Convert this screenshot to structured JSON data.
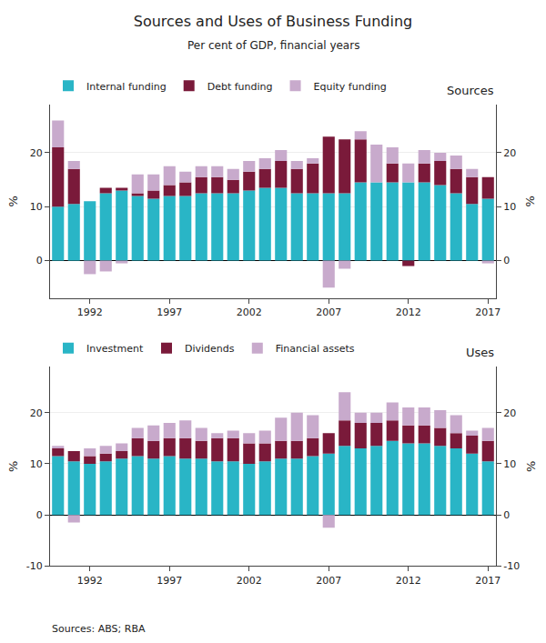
{
  "chart_data": [
    {
      "type": "bar",
      "title": "Sources and Uses of Business Funding",
      "subtitle": "Per cent of GDP, financial years",
      "annotations": [
        "Sources"
      ],
      "ylabel": "%",
      "y2label": "%",
      "categories": [
        null,
        null,
        "1992",
        null,
        null,
        null,
        null,
        "1997",
        null,
        null,
        null,
        null,
        "2002",
        null,
        null,
        null,
        null,
        "2007",
        null,
        null,
        null,
        null,
        "2012",
        null,
        null,
        null,
        null,
        "2017"
      ],
      "series": [
        {
          "name": "Internal funding",
          "color": "#29B5C6",
          "values": [
            10.0,
            10.5,
            11.0,
            12.5,
            13.0,
            12.0,
            11.5,
            12.0,
            12.0,
            12.5,
            12.5,
            12.5,
            13.0,
            13.5,
            13.5,
            12.5,
            12.5,
            12.5,
            12.5,
            14.5,
            14.5,
            14.5,
            14.5,
            14.5,
            14.0,
            12.5,
            10.5,
            11.5
          ]
        },
        {
          "name": "Debt funding",
          "color": "#7A1A3A",
          "values": [
            11.0,
            6.5,
            0.0,
            1.0,
            0.5,
            0.5,
            1.5,
            2.0,
            2.5,
            3.0,
            3.0,
            2.5,
            3.5,
            3.5,
            5.0,
            4.5,
            5.5,
            10.5,
            10.0,
            8.0,
            0.0,
            3.5,
            0.0,
            3.5,
            4.5,
            4.5,
            5.0,
            4.0
          ]
        },
        {
          "name": "Equity funding",
          "color": "#C8AACC",
          "values": [
            5.0,
            1.5,
            0.0,
            0.0,
            0.0,
            3.5,
            3.0,
            3.5,
            2.0,
            2.0,
            2.0,
            2.0,
            2.0,
            2.0,
            2.0,
            1.5,
            1.0,
            0.0,
            0.0,
            1.5,
            7.0,
            3.0,
            3.5,
            2.5,
            1.5,
            2.5,
            1.5,
            0.0
          ]
        },
        {
          "name": "Debt funding",
          "color": "#7A1A3A",
          "values": [
            0.0,
            0.0,
            0.0,
            0.0,
            0.0,
            0.0,
            0.0,
            0.0,
            0.0,
            0.0,
            0.0,
            0.0,
            0.0,
            0.0,
            0.0,
            0.0,
            0.0,
            0.0,
            0.0,
            0.0,
            0.0,
            0.0,
            -1.0,
            0.0,
            0.0,
            0.0,
            0.0,
            0.0
          ]
        },
        {
          "name": "Equity funding",
          "color": "#C8AACC",
          "values": [
            0.0,
            0.0,
            -2.5,
            -2.0,
            -0.5,
            0.0,
            0.0,
            0.0,
            0.0,
            0.0,
            0.0,
            0.0,
            0.0,
            0.0,
            0.0,
            0.0,
            0.0,
            -5.0,
            -1.5,
            0.0,
            0.0,
            0.0,
            0.0,
            0.0,
            0.0,
            0.0,
            0.0,
            -0.5
          ]
        }
      ],
      "stacked": true,
      "ylim": [
        -7,
        29
      ],
      "yticks": [
        0,
        10,
        20
      ],
      "y2lim": [
        -7,
        29
      ],
      "y2ticks": [
        0,
        10,
        20
      ],
      "grid": true,
      "legend": "upper left"
    },
    {
      "type": "bar",
      "annotations": [
        "Uses",
        "Sources: ABS; RBA"
      ],
      "ylabel": "%",
      "y2label": "%",
      "categories": [
        null,
        null,
        "1992",
        null,
        null,
        null,
        null,
        "1997",
        null,
        null,
        null,
        null,
        "2002",
        null,
        null,
        null,
        null,
        "2007",
        null,
        null,
        null,
        null,
        "2012",
        null,
        null,
        null,
        null,
        "2017"
      ],
      "series": [
        {
          "name": "Investment",
          "color": "#29B5C6",
          "values": [
            11.5,
            10.5,
            10.0,
            10.5,
            11.0,
            11.5,
            11.0,
            11.5,
            11.0,
            11.0,
            10.5,
            10.5,
            10.0,
            10.5,
            11.0,
            11.0,
            11.5,
            12.0,
            13.5,
            13.0,
            13.5,
            14.5,
            14.0,
            14.0,
            13.5,
            13.0,
            12.0,
            10.5
          ]
        },
        {
          "name": "Dividends",
          "color": "#7A1A3A",
          "values": [
            1.5,
            2.0,
            1.5,
            1.5,
            1.5,
            3.5,
            3.5,
            3.5,
            4.0,
            3.5,
            4.5,
            4.5,
            4.0,
            3.5,
            3.5,
            3.5,
            3.5,
            4.0,
            5.0,
            5.0,
            4.5,
            4.0,
            3.5,
            3.5,
            3.5,
            3.0,
            3.5,
            4.0
          ]
        },
        {
          "name": "Financial assets",
          "color": "#C8AACC",
          "values": [
            0.5,
            0.0,
            1.5,
            1.5,
            1.5,
            2.0,
            3.0,
            3.0,
            3.5,
            2.5,
            1.0,
            1.5,
            2.0,
            2.5,
            4.5,
            5.5,
            4.5,
            0.0,
            5.5,
            2.0,
            2.0,
            3.5,
            3.5,
            3.5,
            3.5,
            3.5,
            1.0,
            2.5
          ]
        },
        {
          "name": "Financial assets",
          "color": "#C8AACC",
          "values": [
            0.0,
            -1.5,
            0.0,
            0.0,
            0.0,
            0.0,
            0.0,
            0.0,
            0.0,
            0.0,
            0.0,
            0.0,
            0.0,
            0.0,
            0.0,
            0.0,
            0.0,
            -2.5,
            0.0,
            0.0,
            0.0,
            0.0,
            0.0,
            0.0,
            0.0,
            0.0,
            0.0,
            0.0
          ]
        }
      ],
      "stacked": true,
      "ylim": [
        -10,
        29
      ],
      "yticks": [
        -10,
        0,
        10,
        20
      ],
      "y2lim": [
        -10,
        29
      ],
      "y2ticks": [
        -10,
        0,
        10,
        20
      ],
      "grid": true,
      "legend": "upper left"
    }
  ]
}
